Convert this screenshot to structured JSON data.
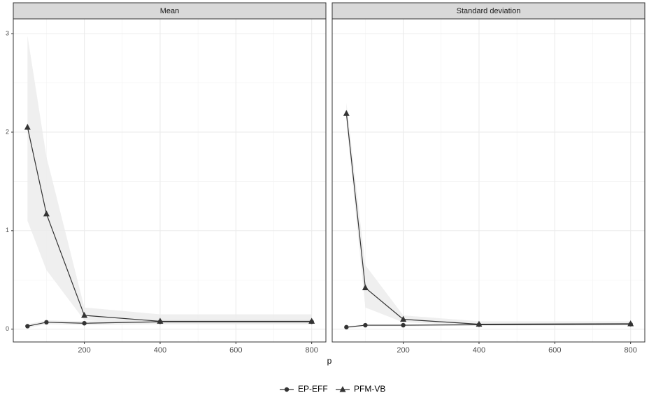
{
  "chart_data": {
    "type": "line",
    "xlabel": "p",
    "x": [
      50,
      100,
      200,
      400,
      800
    ],
    "xlim": [
      12.5,
      837.5
    ],
    "xticks": [
      200,
      400,
      600,
      800
    ],
    "xminor": [
      100,
      300,
      500,
      700
    ],
    "ylim": [
      -0.13,
      3.15
    ],
    "yticks": [
      0,
      1,
      2,
      3
    ],
    "yminor": [
      0.5,
      1.5,
      2.5
    ],
    "grid": true,
    "legend": "bottom",
    "band_color": "#ebebeb",
    "series": [
      {
        "name": "EP-EFF",
        "marker": "circle",
        "color": "#333333"
      },
      {
        "name": "PFM-VB",
        "marker": "triangle",
        "color": "#333333"
      }
    ],
    "facets": [
      {
        "title": "Mean",
        "series": [
          {
            "values": [
              0.03,
              0.07,
              0.06,
              0.075,
              0.075
            ],
            "lower": [
              0.01,
              0.05,
              0.04,
              0.05,
              0.05
            ],
            "upper": [
              0.05,
              0.09,
              0.08,
              0.1,
              0.1
            ]
          },
          {
            "values": [
              2.05,
              1.17,
              0.14,
              0.08,
              0.08
            ],
            "lower": [
              1.1,
              0.6,
              0.09,
              0.05,
              0.05
            ],
            "upper": [
              2.98,
              1.75,
              0.22,
              0.15,
              0.15
            ]
          }
        ]
      },
      {
        "title": "Standard deviation",
        "series": [
          {
            "values": [
              0.02,
              0.04,
              0.04,
              0.045,
              0.05
            ],
            "lower": [
              0.01,
              0.03,
              0.03,
              0.035,
              0.04
            ],
            "upper": [
              0.03,
              0.05,
              0.05,
              0.06,
              0.06
            ]
          },
          {
            "values": [
              2.19,
              0.42,
              0.1,
              0.05,
              0.055
            ],
            "lower": [
              2.1,
              0.22,
              0.07,
              0.035,
              0.04
            ],
            "upper": [
              2.3,
              0.65,
              0.14,
              0.08,
              0.08
            ]
          }
        ]
      }
    ]
  }
}
